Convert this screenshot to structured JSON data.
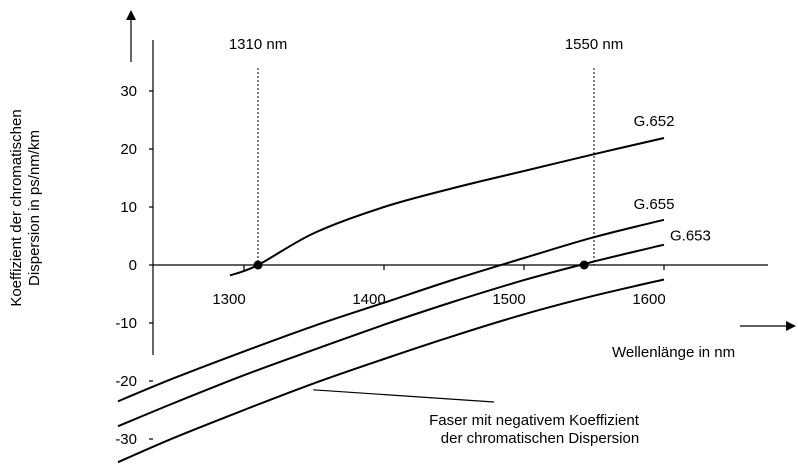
{
  "chart_data": {
    "type": "line",
    "xlabel": "Wellenlänge in nm",
    "ylabel": [
      "Koeffizient der chromatischen",
      "Dispersion in ps/nm/km"
    ],
    "x_ticks": [
      1300,
      1400,
      1500,
      1600
    ],
    "y_ticks": [
      30,
      20,
      10,
      0,
      -10,
      -20,
      -30
    ],
    "xlim": [
      1270,
      1665
    ],
    "ylim": [
      -35,
      39
    ],
    "grid": false,
    "series": [
      {
        "name": "G.652",
        "x": [
          1290,
          1310,
          1350,
          1400,
          1450,
          1500,
          1550,
          1600
        ],
        "y": [
          -1.8,
          0,
          5.5,
          10,
          13.3,
          16.2,
          19.1,
          21.9
        ]
      },
      {
        "name": "G.655",
        "x": [
          1210,
          1250,
          1300,
          1350,
          1400,
          1450,
          1500,
          1550,
          1600
        ],
        "y": [
          -23.5,
          -19.5,
          -14.9,
          -10.5,
          -6.5,
          -2.5,
          1.2,
          4.8,
          7.8
        ]
      },
      {
        "name": "G.653",
        "x": [
          1210,
          1250,
          1300,
          1350,
          1400,
          1450,
          1500,
          1550,
          1600
        ],
        "y": [
          -27.8,
          -23.8,
          -19,
          -14.6,
          -10.3,
          -6.3,
          -2.6,
          0.6,
          3.5
        ]
      },
      {
        "name": "",
        "x": [
          1210,
          1250,
          1300,
          1350,
          1400,
          1450,
          1500,
          1550,
          1600
        ],
        "y": [
          -34,
          -29.8,
          -25,
          -20.4,
          -16.2,
          -12.2,
          -8.5,
          -5.3,
          -2.5
        ]
      }
    ],
    "reference_lines": [
      {
        "label": "1310 nm",
        "x": 1310
      },
      {
        "label": "1550 nm",
        "x": 1550
      }
    ],
    "markers": [
      {
        "x": 1310,
        "y": 0
      },
      {
        "x": 1543,
        "y": 0
      }
    ],
    "annotation": {
      "lines": [
        "Faser mit negativem Koeffizient",
        "der chromatischen Dispersion"
      ],
      "points_to_series": 3,
      "target": {
        "x": 1348,
        "y": -21
      }
    }
  }
}
